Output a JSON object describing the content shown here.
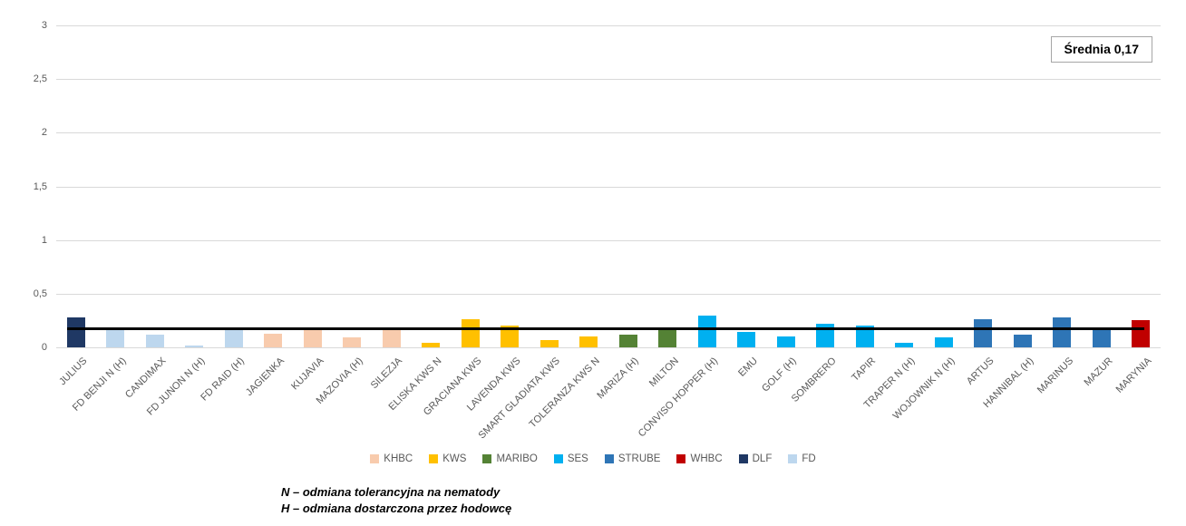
{
  "chart_data": {
    "type": "bar",
    "title": "",
    "xlabel": "",
    "ylabel": "",
    "ylim": [
      0,
      3
    ],
    "grid": true,
    "legend_position": "bottom-center",
    "y_ticks": [
      {
        "label": "0",
        "value": 0
      },
      {
        "label": "0,5",
        "value": 0.5
      },
      {
        "label": "1",
        "value": 1
      },
      {
        "label": "1,5",
        "value": 1.5
      },
      {
        "label": "2",
        "value": 2
      },
      {
        "label": "2,5",
        "value": 2.5
      },
      {
        "label": "3",
        "value": 3
      }
    ],
    "brands": [
      {
        "name": "KHBC",
        "color": "#F8CBAD"
      },
      {
        "name": "KWS",
        "color": "#FFC000"
      },
      {
        "name": "MARIBO",
        "color": "#548235"
      },
      {
        "name": "SES",
        "color": "#00B0F0"
      },
      {
        "name": "STRUBE",
        "color": "#2E75B6"
      },
      {
        "name": "WHBC",
        "color": "#C00000"
      },
      {
        "name": "DLF",
        "color": "#1F3864"
      },
      {
        "name": "FD",
        "color": "#BDD7EE"
      }
    ],
    "average": {
      "label": "Średnia 0,17",
      "value": 0.17,
      "line_color": "#000000"
    },
    "points": [
      {
        "label": "JULIUS",
        "brand": "DLF",
        "value": 0.28
      },
      {
        "label": "FD BENJI N (H)",
        "brand": "FD",
        "value": 0.16
      },
      {
        "label": "CANDIMAX",
        "brand": "FD",
        "value": 0.12
      },
      {
        "label": "FD JUNON N (H)",
        "brand": "FD",
        "value": 0.02
      },
      {
        "label": "FD RAID (H)",
        "brand": "FD",
        "value": 0.16
      },
      {
        "label": "JAGIENKA",
        "brand": "KHBC",
        "value": 0.13
      },
      {
        "label": "KUJAVIA",
        "brand": "KHBC",
        "value": 0.19
      },
      {
        "label": "MAZOVIA (H)",
        "brand": "KHBC",
        "value": 0.09
      },
      {
        "label": "SILEZJA",
        "brand": "KHBC",
        "value": 0.19
      },
      {
        "label": "ELISKA KWS N",
        "brand": "KWS",
        "value": 0.04
      },
      {
        "label": "GRACIANA KWS",
        "brand": "KWS",
        "value": 0.26
      },
      {
        "label": "LAVENDA KWS",
        "brand": "KWS",
        "value": 0.2
      },
      {
        "label": "SMART GLADIATA KWS",
        "brand": "KWS",
        "value": 0.07
      },
      {
        "label": "TOLERANZA KWS N",
        "brand": "KWS",
        "value": 0.1
      },
      {
        "label": "MARIZA (H)",
        "brand": "MARIBO",
        "value": 0.12
      },
      {
        "label": "MILTON",
        "brand": "MARIBO",
        "value": 0.17
      },
      {
        "label": "CONVISO HOPPER (H)",
        "brand": "SES",
        "value": 0.3
      },
      {
        "label": "EMU",
        "brand": "SES",
        "value": 0.14
      },
      {
        "label": "GOLF (H)",
        "brand": "SES",
        "value": 0.1
      },
      {
        "label": "SOMBRERO",
        "brand": "SES",
        "value": 0.22
      },
      {
        "label": "TAPIR",
        "brand": "SES",
        "value": 0.2
      },
      {
        "label": "TRAPER N (H)",
        "brand": "SES",
        "value": 0.04
      },
      {
        "label": "WOJOWNIK N (H)",
        "brand": "SES",
        "value": 0.09
      },
      {
        "label": "ARTUS",
        "brand": "STRUBE",
        "value": 0.26
      },
      {
        "label": "HANNIBAL (H)",
        "brand": "STRUBE",
        "value": 0.12
      },
      {
        "label": "MARINUS",
        "brand": "STRUBE",
        "value": 0.28
      },
      {
        "label": "MAZUR",
        "brand": "STRUBE",
        "value": 0.18
      },
      {
        "label": "MARYNIA",
        "brand": "WHBC",
        "value": 0.25
      }
    ]
  },
  "annotations": {
    "average_box": "Średnia 0,17",
    "notes": [
      "N – odmiana tolerancyjna na nematody",
      "H – odmiana dostarczona przez hodowcę"
    ]
  },
  "colors": {
    "background": "#FFFFFF",
    "gridline": "#D9D9D9",
    "axis_text": "#595959",
    "average_line": "#000000",
    "box_border": "#A6A6A6"
  }
}
